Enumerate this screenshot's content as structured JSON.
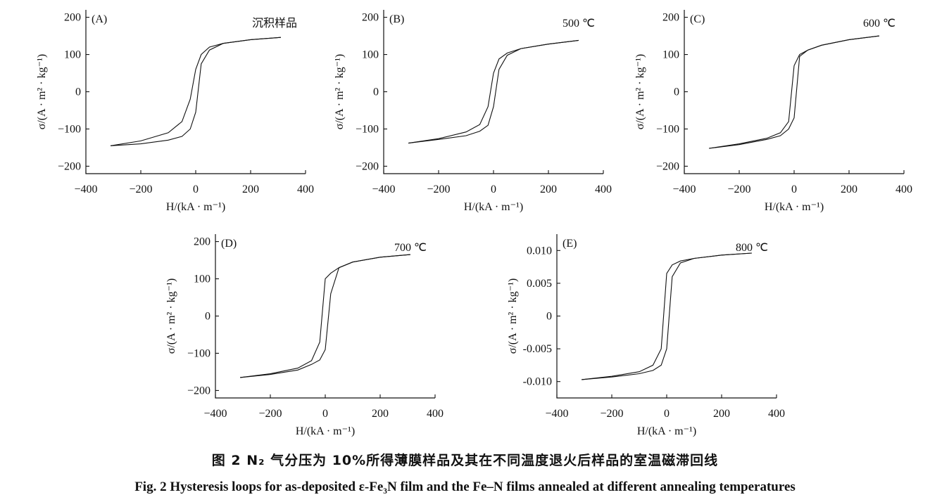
{
  "caption": {
    "chinese": "图 2  N₂ 气分压为 10%所得薄膜样品及其在不同温度退火后样品的室温磁滞回线",
    "english": "Fig. 2   Hysteresis loops for as-deposited ε-Fe₃N film and the Fe–N films annealed at different annealing temperatures"
  },
  "chart_data": [
    {
      "type": "line",
      "panel": "(A)",
      "annotation": "沉积样品",
      "xlabel": "H/(kA · m⁻¹)",
      "ylabel": "σ/(A · m² · kg⁻¹)",
      "xlim": [
        -400,
        400
      ],
      "ylim": [
        -220,
        220
      ],
      "xticks": [
        -400,
        -200,
        0,
        200,
        400
      ],
      "yticks": [
        200,
        100,
        0,
        -100,
        -200
      ],
      "ytick_labels": [
        "200",
        "100",
        "0",
        "−100",
        "−200"
      ],
      "series": [
        {
          "x": [
            -310,
            -200,
            -100,
            -50,
            -20,
            0,
            20,
            50,
            100,
            200,
            310
          ],
          "y": [
            -145,
            -132,
            -110,
            -80,
            -20,
            60,
            100,
            120,
            130,
            140,
            146
          ]
        },
        {
          "x": [
            310,
            200,
            100,
            50,
            20,
            0,
            -20,
            -50,
            -100,
            -200,
            -310
          ],
          "y": [
            146,
            140,
            130,
            112,
            75,
            -55,
            -100,
            -120,
            -130,
            -140,
            -145
          ]
        }
      ]
    },
    {
      "type": "line",
      "panel": "(B)",
      "annotation": "500 ℃",
      "xlabel": "H/(kA · m⁻¹)",
      "ylabel": "σ/(A · m² · kg⁻¹)",
      "xlim": [
        -400,
        400
      ],
      "ylim": [
        -220,
        220
      ],
      "xticks": [
        -400,
        -200,
        0,
        200,
        400
      ],
      "yticks": [
        200,
        100,
        0,
        -100,
        -200
      ],
      "ytick_labels": [
        "200",
        "100",
        "0",
        "−100",
        "−200"
      ],
      "series": [
        {
          "x": [
            -310,
            -200,
            -100,
            -50,
            -20,
            0,
            20,
            50,
            100,
            200,
            310
          ],
          "y": [
            -138,
            -126,
            -108,
            -88,
            -40,
            50,
            88,
            104,
            116,
            128,
            138
          ]
        },
        {
          "x": [
            310,
            200,
            100,
            50,
            20,
            0,
            -20,
            -50,
            -100,
            -200,
            -310
          ],
          "y": [
            138,
            128,
            116,
            98,
            60,
            -40,
            -90,
            -106,
            -118,
            -128,
            -138
          ]
        }
      ]
    },
    {
      "type": "line",
      "panel": "(C)",
      "annotation": "600 ℃",
      "xlabel": "H/(kA · m⁻¹)",
      "ylabel": "σ/(A · m² · kg⁻¹)",
      "xlim": [
        -400,
        400
      ],
      "ylim": [
        -220,
        220
      ],
      "xticks": [
        -400,
        -200,
        0,
        200,
        400
      ],
      "yticks": [
        200,
        100,
        0,
        -100,
        -200
      ],
      "ytick_labels": [
        "200",
        "100",
        "0",
        "−100",
        "−200"
      ],
      "series": [
        {
          "x": [
            -310,
            -200,
            -100,
            -50,
            -20,
            0,
            20,
            50,
            100,
            200,
            310
          ],
          "y": [
            -152,
            -140,
            -125,
            -110,
            -80,
            70,
            100,
            112,
            125,
            140,
            150
          ]
        },
        {
          "x": [
            310,
            200,
            100,
            50,
            20,
            0,
            -20,
            -50,
            -100,
            -200,
            -310
          ],
          "y": [
            150,
            140,
            125,
            112,
            95,
            -70,
            -100,
            -118,
            -128,
            -142,
            -152
          ]
        }
      ]
    },
    {
      "type": "line",
      "panel": "(D)",
      "annotation": "700 ℃",
      "xlabel": "H/(kA · m⁻¹)",
      "ylabel": "σ/(A · m² · kg⁻¹)",
      "xlim": [
        -400,
        400
      ],
      "ylim": [
        -220,
        220
      ],
      "xticks": [
        -400,
        -200,
        0,
        200,
        400
      ],
      "yticks": [
        200,
        100,
        0,
        -100,
        -200
      ],
      "ytick_labels": [
        "200",
        "100",
        "0",
        "−100",
        "−200"
      ],
      "series": [
        {
          "x": [
            -310,
            -200,
            -100,
            -50,
            -20,
            0,
            20,
            50,
            100,
            200,
            310
          ],
          "y": [
            -165,
            -155,
            -140,
            -120,
            -70,
            100,
            115,
            130,
            145,
            158,
            165
          ]
        },
        {
          "x": [
            310,
            200,
            100,
            50,
            20,
            0,
            -20,
            -50,
            -100,
            -200,
            -310
          ],
          "y": [
            165,
            158,
            145,
            130,
            60,
            -90,
            -118,
            -130,
            -145,
            -157,
            -165
          ]
        }
      ]
    },
    {
      "type": "line",
      "panel": "(E)",
      "annotation": "800 ℃",
      "xlabel": "H/(kA · m⁻¹)",
      "ylabel": "σ/(A · m² · kg⁻¹)",
      "xlim": [
        -400,
        400
      ],
      "ylim": [
        -0.0125,
        0.0125
      ],
      "xticks": [
        -400,
        -200,
        0,
        200,
        400
      ],
      "yticks": [
        0.01,
        0.005,
        0,
        -0.005,
        -0.01
      ],
      "ytick_labels": [
        "0.010",
        "0.005",
        "0",
        "-0.005",
        "-0.010"
      ],
      "series": [
        {
          "x": [
            -310,
            -200,
            -100,
            -50,
            -20,
            0,
            20,
            50,
            100,
            200,
            310
          ],
          "y": [
            -0.0097,
            -0.0092,
            -0.0085,
            -0.0075,
            -0.005,
            0.0065,
            0.0078,
            0.0084,
            0.0088,
            0.0093,
            0.0096
          ]
        },
        {
          "x": [
            310,
            200,
            100,
            50,
            20,
            0,
            -20,
            -50,
            -100,
            -200,
            -310
          ],
          "y": [
            0.0096,
            0.0093,
            0.0088,
            0.0081,
            0.006,
            -0.005,
            -0.0075,
            -0.0083,
            -0.0088,
            -0.0093,
            -0.0097
          ]
        }
      ]
    }
  ]
}
